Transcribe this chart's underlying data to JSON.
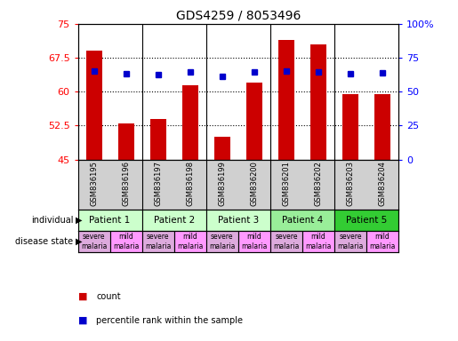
{
  "title": "GDS4259 / 8053496",
  "samples": [
    "GSM836195",
    "GSM836196",
    "GSM836197",
    "GSM836198",
    "GSM836199",
    "GSM836200",
    "GSM836201",
    "GSM836202",
    "GSM836203",
    "GSM836204"
  ],
  "count_values": [
    69.0,
    53.0,
    54.0,
    61.5,
    50.0,
    62.0,
    71.5,
    70.5,
    59.5,
    59.5
  ],
  "percentile_values": [
    65.0,
    63.0,
    62.5,
    64.5,
    61.0,
    64.5,
    65.5,
    64.5,
    63.0,
    64.0
  ],
  "ylim_left": [
    45,
    75
  ],
  "ylim_right": [
    0,
    100
  ],
  "yticks_left": [
    45,
    52.5,
    60,
    67.5,
    75
  ],
  "yticks_right": [
    0,
    25,
    50,
    75,
    100
  ],
  "ytick_labels_left": [
    "45",
    "52.5",
    "60",
    "67.5",
    "75"
  ],
  "ytick_labels_right": [
    "0",
    "25",
    "50",
    "75",
    "100%"
  ],
  "bar_color": "#cc0000",
  "dot_color": "#0000cc",
  "patients": [
    {
      "label": "Patient 1",
      "start": 0,
      "end": 2,
      "color": "#ccffcc"
    },
    {
      "label": "Patient 2",
      "start": 2,
      "end": 4,
      "color": "#ccffcc"
    },
    {
      "label": "Patient 3",
      "start": 4,
      "end": 6,
      "color": "#ccffcc"
    },
    {
      "label": "Patient 4",
      "start": 6,
      "end": 8,
      "color": "#99ee99"
    },
    {
      "label": "Patient 5",
      "start": 8,
      "end": 10,
      "color": "#33cc33"
    }
  ],
  "disease_colors": [
    "#ddaadd",
    "#ff99ff",
    "#ddaadd",
    "#ff99ff",
    "#ddaadd",
    "#ff99ff",
    "#ddaadd",
    "#ff99ff",
    "#ddaadd",
    "#ff99ff"
  ],
  "disease_labels": [
    "severe\nmalaria",
    "mild\nmalaria",
    "severe\nmalaria",
    "mild\nmalaria",
    "severe\nmalaria",
    "mild\nmalaria",
    "severe\nmalaria",
    "mild\nmalaria",
    "severe\nmalaria",
    "mild\nmalaria"
  ],
  "sample_bg_color": "#d0d0d0",
  "legend_labels": [
    "count",
    "percentile rank within the sample"
  ],
  "legend_colors": [
    "#cc0000",
    "#0000cc"
  ],
  "bar_width": 0.5,
  "background_color": "#ffffff"
}
